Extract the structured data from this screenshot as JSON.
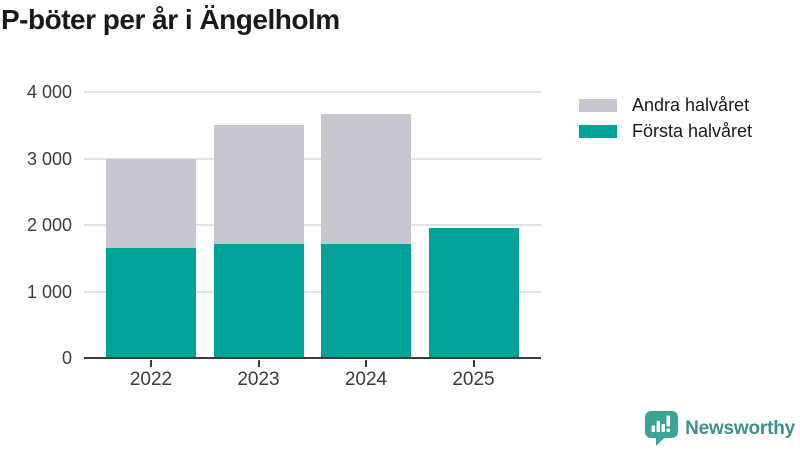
{
  "title": "P-böter per år i Ängelholm",
  "legend": {
    "items": [
      {
        "label": "Andra halvåret",
        "color": "#c8c6d0"
      },
      {
        "label": "Första halvåret",
        "color": "#00a39a"
      }
    ]
  },
  "chart_data": {
    "type": "bar",
    "stacked": true,
    "title": "P-böter per år i Ängelholm",
    "categories": [
      "2022",
      "2023",
      "2024",
      "2025"
    ],
    "series": [
      {
        "name": "Första halvåret",
        "color": "#00a39a",
        "values": [
          1650,
          1720,
          1710,
          1960
        ]
      },
      {
        "name": "Andra halvåret",
        "color": "#c8c6d0",
        "values": [
          1350,
          1780,
          1955,
          0
        ]
      }
    ],
    "xlabel": "",
    "ylabel": "",
    "ylim": [
      0,
      4000
    ],
    "yticks": [
      {
        "value": 0,
        "label": "0"
      },
      {
        "value": 1000,
        "label": "1 000"
      },
      {
        "value": 2000,
        "label": "2 000"
      },
      {
        "value": 3000,
        "label": "3 000"
      },
      {
        "value": 4000,
        "label": "4 000"
      }
    ],
    "grid": true,
    "legend_position": "top-right"
  },
  "branding": {
    "logo_text": "Newsworthy",
    "logo_icon": "newsworthy-speech-bubble-bar-chart-icon",
    "logo_color": "#3aa396",
    "text_color": "#3e918d"
  },
  "colors": {
    "background": "#ffffff",
    "title_text": "#1a1a1a",
    "tick_text": "#3c3c3c",
    "gridline": "#e2e2e2",
    "axis_line": "#3d3d3d",
    "bar_teal": "#00a39a",
    "bar_gray": "#c8c6d0"
  }
}
